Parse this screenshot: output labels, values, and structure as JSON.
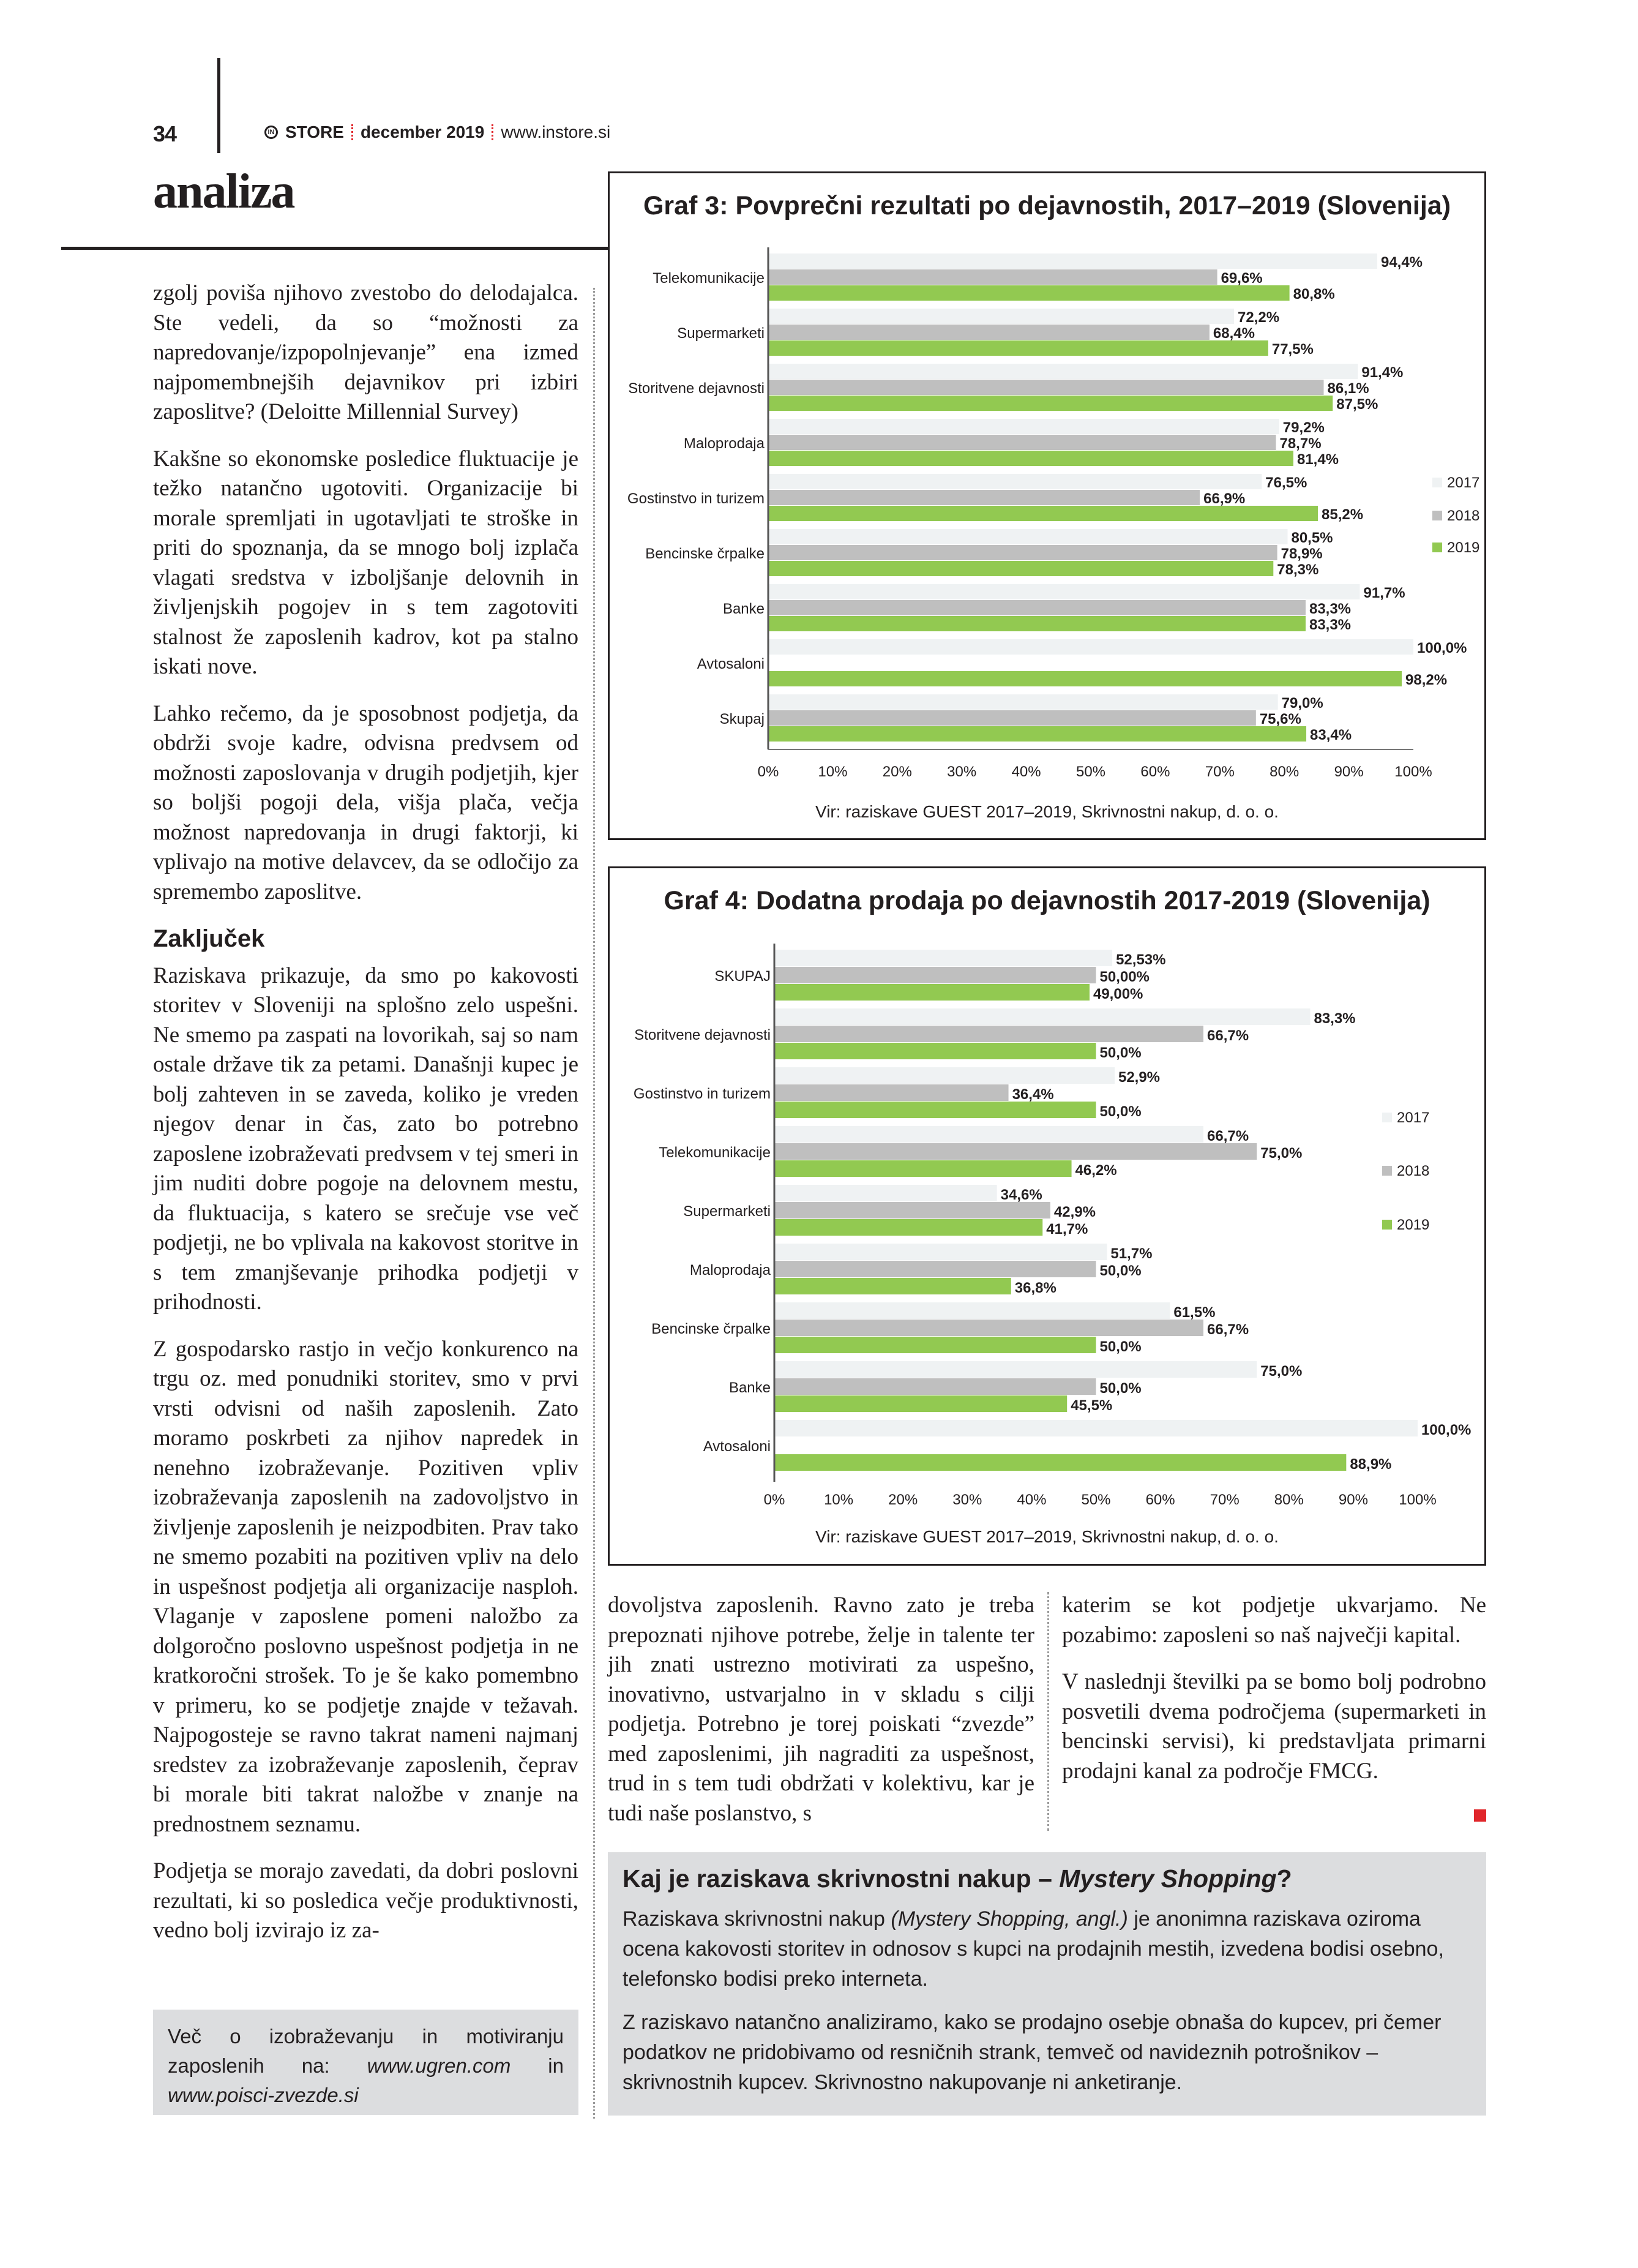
{
  "header": {
    "page_number": "34",
    "logo_text": "IN",
    "brand": "STORE",
    "issue": "december 2019",
    "website": "www.instore.si",
    "section": "analiza"
  },
  "left_column": {
    "p1": "zgolj poviša njihovo zvestobo do delodajalca. Ste vedeli, da so “možnosti za napredovanje/izpopolnjevanje” ena izmed najpomembnejših dejavnikov pri izbiri zaposlitve? (Deloitte Millennial Survey)",
    "p2": "Kakšne so ekonomske posledice fluktuacije je težko natančno ugotoviti. Organizacije bi morale spremljati in ugotavljati te stroške in priti do spoznanja, da se mnogo bolj izplača vlagati sredstva v izboljšanje delovnih in življenjskih pogojev in s tem zagotoviti stalnost že zaposlenih kadrov, kot pa stalno iskati nove.",
    "p3": "Lahko rečemo, da je sposobnost podjetja, da obdrži svoje kadre, odvisna predvsem od možnosti zaposlovanja v drugih podjetjih, kjer so boljši pogoji dela, višja plača, večja možnost napredovanja in drugi faktorji, ki vplivajo na motive delavcev, da se odločijo za spremembo zaposlitve.",
    "heading": "Zaključek",
    "p4": "Raziskava prikazuje, da smo po kakovosti storitev v Sloveniji na splošno zelo uspešni. Ne smemo pa zaspati na lovorikah, saj so nam ostale države tik za petami. Današnji kupec je bolj zahteven in se zaveda, koliko je vreden njegov denar in čas, zato bo potrebno zaposlene izobraževati predvsem v tej smeri in jim nuditi dobre pogoje na delovnem mestu, da fluktuacija, s katero se srečuje vse več podjetji, ne bo vplivala na kakovost storitve in s tem zmanjševanje prihodka podjetji v prihodnosti.",
    "p5": "Z gospodarsko rastjo in večjo konkurenco na trgu oz. med ponudniki storitev, smo v prvi vrsti odvisni od naših zaposlenih. Zato moramo poskrbeti za njihov napredek in nenehno izobraževanje. Pozitiven vpliv izobraževanja zaposlenih na zadovoljstvo in življenje zaposlenih je neizpodbiten. Prav tako ne smemo pozabiti na pozitiven vpliv na delo in uspešnost podjetja ali organizacije nasploh. Vlaganje v zaposlene pomeni naložbo za dolgoročno poslovno uspešnost podjetja in ne kratkoročni strošek. To je še kako pomembno v primeru, ko se podjetje znajde v težavah. Najpogosteje se ravno takrat nameni najmanj sredstev za izobraževanje zaposlenih, čeprav bi morale biti takrat naložbe v znanje na prednostnem seznamu.",
    "p6": "Podjetja se morajo zavedati, da dobri poslovni rezultati, ki so posledica večje produktivnosti, vedno bolj izvirajo iz za-"
  },
  "info_box": {
    "text_before": "Več o izobraževanju in motiviranju zaposlenih na: ",
    "link1": "www.ugren.com",
    "text_mid": " in ",
    "link2": "www.poisci-zvezde.si"
  },
  "middle_column": {
    "p1": "dovoljstva zaposlenih. Ravno zato je treba prepoznati njihove potrebe, želje in talente ter jih znati ustrezno motivirati za uspešno, inovativno, ustvarjalno in v skladu s cilji podjetja. Potrebno je torej poiskati “zvezde” med zaposlenimi, jih nagraditi za uspešnost, trud in s tem tudi obdržati v kolektivu, kar je tudi naše poslanstvo, s"
  },
  "right_column": {
    "p1": "katerim se kot podjetje ukvarjamo. Ne pozabimo: zaposleni so naš največji kapital.",
    "p2": "V naslednji številki pa se bomo bolj podrobno posvetili dvema področjema (supermarketi in bencinski servisi), ki predstavljata primarni prodajni kanal za področje FMCG."
  },
  "mystery_box": {
    "title_plain": "Kaj je raziskava skrivnostni nakup – ",
    "title_italic": "Mystery Shopping",
    "title_end": "?",
    "p1_before": "Raziskava skrivnostni nakup ",
    "p1_italic": "(Mystery Shopping, angl.)",
    "p1_after": " je anonimna raziskava oziroma ocena kakovosti storitev in odnosov s kupci na prodajnih mestih, izvedena bodisi osebno, telefonsko bodisi preko interneta.",
    "p2": "Z raziskavo natančno analiziramo, kako se prodajno osebje obnaša do kupcev, pri čemer podatkov ne pridobivamo od resničnih strank, temveč od navideznih potrošnikov – skrivnostnih kupcev. Skrivnostno nakupovanje ni anketiranje."
  },
  "colors": {
    "2017": "#eff2f3",
    "2018": "#bfbfbf",
    "2019": "#92c951",
    "accent": "#e0262b"
  },
  "chart_data": [
    {
      "type": "bar",
      "orientation": "horizontal",
      "title": "Graf 3: Povprečni rezultati po dejavnostih, 2017–2019 (Slovenija)",
      "source": "Vir: raziskave GUEST 2017–2019, Skrivnostni nakup, d. o. o.",
      "categories": [
        "Telekomunikacije",
        "Supermarketi",
        "Storitvene dejavnosti",
        "Maloprodaja",
        "Gostinstvo in turizem",
        "Bencinske črpalke",
        "Banke",
        "Avtosaloni",
        "Skupaj"
      ],
      "series": [
        {
          "name": "2017",
          "values": [
            94.4,
            72.2,
            91.4,
            79.2,
            76.5,
            80.5,
            91.7,
            100.0,
            79.0
          ],
          "labels": [
            "94,4%",
            "72,2%",
            "91,4%",
            "79,2%",
            "76,5%",
            "80,5%",
            "91,7%",
            "100,0%",
            "79,0%"
          ]
        },
        {
          "name": "2018",
          "values": [
            69.6,
            68.4,
            86.1,
            78.7,
            66.9,
            78.9,
            83.3,
            null,
            75.6
          ],
          "labels": [
            "69,6%",
            "68,4%",
            "86,1%",
            "78,7%",
            "66,9%",
            "78,9%",
            "83,3%",
            "",
            "75,6%"
          ]
        },
        {
          "name": "2019",
          "values": [
            80.8,
            77.5,
            87.5,
            81.4,
            85.2,
            78.3,
            83.3,
            98.2,
            83.4
          ],
          "labels": [
            "80,8%",
            "77,5%",
            "87,5%",
            "81,4%",
            "85,2%",
            "78,3%",
            "83,3%",
            "98,2%",
            "83,4%"
          ]
        }
      ],
      "xlim": [
        0,
        100
      ],
      "xticks": [
        "0%",
        "10%",
        "20%",
        "30%",
        "40%",
        "50%",
        "60%",
        "70%",
        "80%",
        "90%",
        "100%"
      ],
      "legend": "right",
      "grid": false
    },
    {
      "type": "bar",
      "orientation": "horizontal",
      "title": "Graf 4: Dodatna prodaja po dejavnostih 2017-2019 (Slovenija)",
      "source": "Vir: raziskave GUEST 2017–2019, Skrivnostni nakup, d. o. o.",
      "categories": [
        "SKUPAJ",
        "Storitvene dejavnosti",
        "Gostinstvo in turizem",
        "Telekomunikacije",
        "Supermarketi",
        "Maloprodaja",
        "Bencinske črpalke",
        "Banke",
        "Avtosaloni"
      ],
      "series": [
        {
          "name": "2017",
          "values": [
            52.53,
            83.3,
            52.9,
            66.7,
            34.6,
            51.7,
            61.5,
            75.0,
            100.0
          ],
          "labels": [
            "52,53%",
            "83,3%",
            "52,9%",
            "66,7%",
            "34,6%",
            "51,7%",
            "61,5%",
            "75,0%",
            "100,0%"
          ]
        },
        {
          "name": "2018",
          "values": [
            50.0,
            66.7,
            36.4,
            75.0,
            42.9,
            50.0,
            66.7,
            50.0,
            null
          ],
          "labels": [
            "50,00%",
            "66,7%",
            "36,4%",
            "75,0%",
            "42,9%",
            "50,0%",
            "66,7%",
            "50,0%",
            ""
          ]
        },
        {
          "name": "2019",
          "values": [
            49.0,
            50.0,
            50.0,
            46.2,
            41.7,
            36.8,
            50.0,
            45.5,
            88.9
          ],
          "labels": [
            "49,00%",
            "50,0%",
            "50,0%",
            "46,2%",
            "41,7%",
            "36,8%",
            "50,0%",
            "45,5%",
            "88,9%"
          ]
        }
      ],
      "xlim": [
        0,
        100
      ],
      "xticks": [
        "0%",
        "10%",
        "20%",
        "30%",
        "40%",
        "50%",
        "60%",
        "70%",
        "80%",
        "90%",
        "100%"
      ],
      "legend": "right",
      "grid": false
    }
  ]
}
